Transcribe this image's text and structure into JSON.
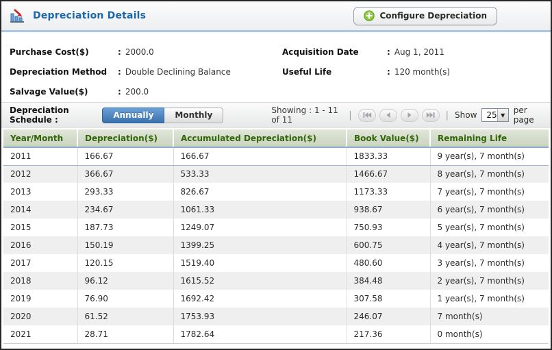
{
  "header": {
    "title": "Depreciation Details",
    "configure_button_label": "Configure Depreciation"
  },
  "details": {
    "colon": ":",
    "left": [
      {
        "label": "Purchase Cost($)",
        "value": "2000.0"
      },
      {
        "label": "Depreciation Method",
        "value": "Double Declining Balance"
      },
      {
        "label": "Salvage Value($)",
        "value": "200.0"
      }
    ],
    "right": [
      {
        "label": "Acquisition Date",
        "value": "Aug 1, 2011"
      },
      {
        "label": "Useful Life",
        "value": "120 month(s)"
      }
    ]
  },
  "toolbar": {
    "schedule_label": "Depreciation Schedule :",
    "annually_label": "Annually",
    "monthly_label": "Monthly",
    "active_schedule": "Annually",
    "showing_text": "Showing : 1 - 11 of 11",
    "separator": "|",
    "show_label": "Show",
    "page_size": "25",
    "per_page_label": "per page"
  },
  "table": {
    "columns": [
      "Year/Month",
      "Depreciation($)",
      "Accumulated Depreciation($)",
      "Book Value($)",
      "Remaining Life"
    ],
    "column_keys": [
      "year-month",
      "depreciation",
      "accumulated-depreciation",
      "book-value",
      "remaining-life"
    ],
    "rows": [
      [
        "2011",
        "166.67",
        "166.67",
        "1833.33",
        "9 year(s), 7 month(s)"
      ],
      [
        "2012",
        "366.67",
        "533.33",
        "1466.67",
        "8 year(s), 7 month(s)"
      ],
      [
        "2013",
        "293.33",
        "826.67",
        "1173.33",
        "7 year(s), 7 month(s)"
      ],
      [
        "2014",
        "234.67",
        "1061.33",
        "938.67",
        "6 year(s), 7 month(s)"
      ],
      [
        "2015",
        "187.73",
        "1249.07",
        "750.93",
        "5 year(s), 7 month(s)"
      ],
      [
        "2016",
        "150.19",
        "1399.25",
        "600.75",
        "4 year(s), 7 month(s)"
      ],
      [
        "2017",
        "120.15",
        "1519.40",
        "480.60",
        "3 year(s), 7 month(s)"
      ],
      [
        "2018",
        "96.12",
        "1615.52",
        "384.48",
        "2 year(s), 7 month(s)"
      ],
      [
        "2019",
        "76.90",
        "1692.42",
        "307.58",
        "1 year(s), 7 month(s)"
      ],
      [
        "2020",
        "61.52",
        "1753.93",
        "246.07",
        "7 month(s)"
      ],
      [
        "2021",
        "28.71",
        "1782.64",
        "217.36",
        "0 month(s)"
      ]
    ]
  },
  "icons": {
    "title_icon": "depreciation-chart-icon",
    "button_icon": "plus-circle-icon",
    "pagination": [
      "first-page-icon",
      "prev-page-icon",
      "next-page-icon",
      "last-page-icon"
    ],
    "select_arrow": "chevron-down-icon"
  },
  "colors": {
    "title_text": "#1b67a9",
    "header_underline": "#a9c9e2",
    "active_toggle_blue": "#3b71aa",
    "table_header_text": "#336608",
    "row_alt_background": "#efefef",
    "first_row_divider": "#9db8d6",
    "plus_icon_green": "#7ab83a",
    "arrow_red": "#cc2222"
  }
}
